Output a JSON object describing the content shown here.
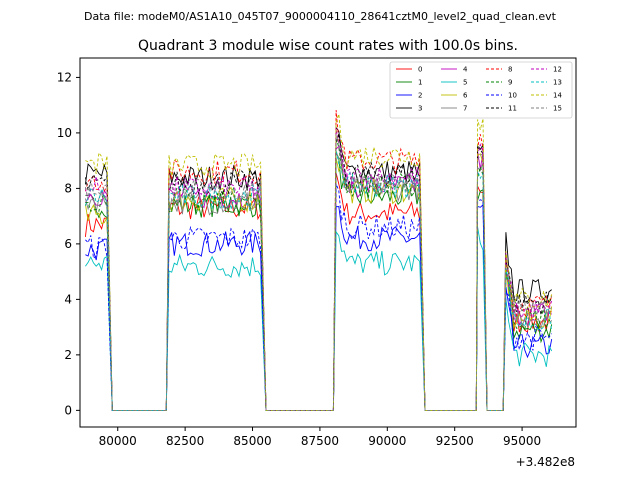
{
  "header": {
    "file_label": "Data file: modeM0/AS1A10_045T07_9000004110_28641cztM0_level2_quad_clean.evt"
  },
  "chart_data": {
    "type": "line",
    "title": "Quadrant 3 module wise count rates with 100.0s bins.",
    "xlabel": "",
    "ylabel": "",
    "x_offset_label": "+3.482e8",
    "xlim": [
      78600,
      97000
    ],
    "ylim": [
      -0.6,
      12.7
    ],
    "x_ticks": [
      80000,
      82500,
      85000,
      87500,
      90000,
      92500,
      95000
    ],
    "x_tick_labels": [
      "80000",
      "82500",
      "85000",
      "87500",
      "90000",
      "92500",
      "95000"
    ],
    "y_ticks": [
      0,
      2,
      4,
      6,
      8,
      10,
      12
    ],
    "y_tick_labels": [
      "0",
      "2",
      "4",
      "6",
      "8",
      "10",
      "12"
    ],
    "segments": [
      {
        "start": 78800,
        "end": 79600
      },
      {
        "start": 81900,
        "end": 85300
      },
      {
        "start": 88100,
        "end": 91200
      },
      {
        "start": 93350,
        "end": 93550
      },
      {
        "start": 94400,
        "end": 96100
      }
    ],
    "gap_points": [
      {
        "x": 79800,
        "y": 0
      },
      {
        "x": 81800,
        "y": 0
      },
      {
        "x": 85500,
        "y": 0
      },
      {
        "x": 88000,
        "y": 0
      },
      {
        "x": 91400,
        "y": 0
      },
      {
        "x": 93300,
        "y": 0
      },
      {
        "x": 93700,
        "y": 0
      },
      {
        "x": 94300,
        "y": 0
      }
    ],
    "legend_position": "top-right",
    "series": [
      {
        "name": "0",
        "color": "#ff0000",
        "dash": "solid",
        "levels": [
          6.7,
          7.3,
          7.1,
          8.0,
          3.2
        ]
      },
      {
        "name": "1",
        "color": "#008000",
        "dash": "solid",
        "levels": [
          7.4,
          7.4,
          7.7,
          7.9,
          2.9
        ]
      },
      {
        "name": "2",
        "color": "#0000ff",
        "dash": "solid",
        "levels": [
          5.8,
          6.0,
          6.2,
          7.2,
          2.3
        ]
      },
      {
        "name": "3",
        "color": "#000000",
        "dash": "solid",
        "levels": [
          8.5,
          8.4,
          8.6,
          9.2,
          4.3
        ]
      },
      {
        "name": "4",
        "color": "#bf00bf",
        "dash": "solid",
        "levels": [
          7.8,
          7.7,
          8.1,
          9.0,
          3.5
        ]
      },
      {
        "name": "5",
        "color": "#00bfbf",
        "dash": "solid",
        "levels": [
          5.3,
          5.2,
          5.3,
          6.2,
          2.0
        ]
      },
      {
        "name": "6",
        "color": "#bfbf00",
        "dash": "solid",
        "levels": [
          7.0,
          7.6,
          7.9,
          8.8,
          3.3
        ]
      },
      {
        "name": "7",
        "color": "#808080",
        "dash": "solid",
        "levels": [
          7.6,
          7.5,
          8.0,
          8.6,
          3.4
        ]
      },
      {
        "name": "8",
        "color": "#ff0000",
        "dash": "dashed",
        "levels": [
          8.3,
          8.6,
          9.0,
          9.9,
          3.8
        ]
      },
      {
        "name": "9",
        "color": "#008000",
        "dash": "dashed",
        "levels": [
          7.6,
          7.6,
          8.1,
          8.7,
          3.3
        ]
      },
      {
        "name": "10",
        "color": "#0000ff",
        "dash": "dashed",
        "levels": [
          5.9,
          6.2,
          6.6,
          7.4,
          2.6
        ]
      },
      {
        "name": "11",
        "color": "#000000",
        "dash": "dashed",
        "levels": [
          8.1,
          8.2,
          8.5,
          9.4,
          3.9
        ]
      },
      {
        "name": "12",
        "color": "#bf00bf",
        "dash": "dashed",
        "levels": [
          8.0,
          8.0,
          8.4,
          9.2,
          3.6
        ]
      },
      {
        "name": "13",
        "color": "#00bfbf",
        "dash": "dashed",
        "levels": [
          7.7,
          7.7,
          8.1,
          8.8,
          3.2
        ]
      },
      {
        "name": "14",
        "color": "#bfbf00",
        "dash": "dashed",
        "levels": [
          8.9,
          8.8,
          9.2,
          10.4,
          4.0
        ]
      },
      {
        "name": "15",
        "color": "#808080",
        "dash": "dashed",
        "levels": [
          8.0,
          7.9,
          8.2,
          9.0,
          3.5
        ]
      }
    ]
  }
}
